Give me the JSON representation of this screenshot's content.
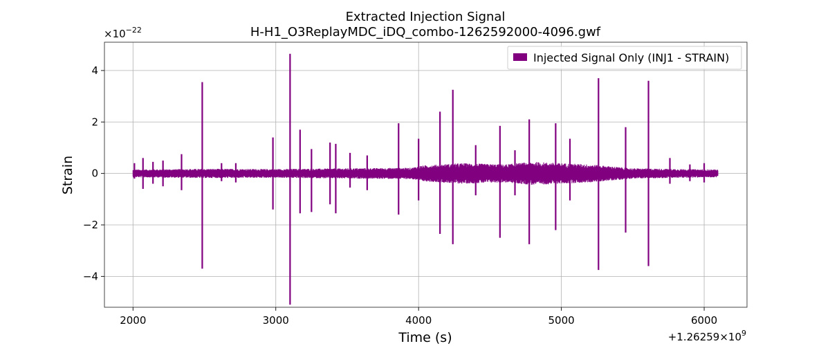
{
  "chart_data": {
    "type": "line",
    "title": "Extracted Injection Signal",
    "subtitle": "H-H1_O3ReplayMDC_iDQ_combo-1262592000-4096.gwf",
    "xlabel": "Time (s)",
    "ylabel": "Strain",
    "x_offset_label": "+1.26259×10",
    "x_offset_exp": "9",
    "y_scale_label": "×10",
    "y_scale_exp": "−22",
    "xlim": [
      1800,
      6300
    ],
    "ylim": [
      -5.2,
      5.1
    ],
    "x_ticks": [
      2000,
      3000,
      4000,
      5000,
      6000
    ],
    "x_tick_labels": [
      "2000",
      "3000",
      "4000",
      "5000",
      "6000"
    ],
    "y_ticks": [
      -4,
      -2,
      0,
      2,
      4
    ],
    "y_tick_labels": [
      "−4",
      "−2",
      "0",
      "2",
      "4"
    ],
    "grid": true,
    "legend_position": "top-right",
    "series": [
      {
        "name": "Injected Signal Only (INJ1 - STRAIN)",
        "color": "#800080",
        "x_range": [
          2000,
          6096
        ],
        "background_envelope": [
          {
            "x": 2000,
            "amp": 0.15
          },
          {
            "x": 2500,
            "amp": 0.18
          },
          {
            "x": 3000,
            "amp": 0.17
          },
          {
            "x": 3500,
            "amp": 0.2
          },
          {
            "x": 3950,
            "amp": 0.22
          },
          {
            "x": 4010,
            "amp": 0.3
          },
          {
            "x": 4300,
            "amp": 0.4
          },
          {
            "x": 4600,
            "amp": 0.35
          },
          {
            "x": 4800,
            "amp": 0.45
          },
          {
            "x": 5200,
            "amp": 0.35
          },
          {
            "x": 5500,
            "amp": 0.2
          },
          {
            "x": 6096,
            "amp": 0.15
          }
        ],
        "glitches": [
          {
            "t": 2010,
            "pos": 0.4,
            "neg": -0.2
          },
          {
            "t": 2070,
            "pos": 0.6,
            "neg": -0.6
          },
          {
            "t": 2140,
            "pos": 0.45,
            "neg": -0.4
          },
          {
            "t": 2210,
            "pos": 0.5,
            "neg": -0.5
          },
          {
            "t": 2340,
            "pos": 0.75,
            "neg": -0.65
          },
          {
            "t": 2485,
            "pos": 3.55,
            "neg": -3.7
          },
          {
            "t": 2620,
            "pos": 0.4,
            "neg": -0.3
          },
          {
            "t": 2720,
            "pos": 0.4,
            "neg": -0.35
          },
          {
            "t": 2980,
            "pos": 1.4,
            "neg": -1.4
          },
          {
            "t": 3100,
            "pos": 4.65,
            "neg": -5.1
          },
          {
            "t": 3170,
            "pos": 1.7,
            "neg": -1.55
          },
          {
            "t": 3250,
            "pos": 0.95,
            "neg": -1.5
          },
          {
            "t": 3380,
            "pos": 1.2,
            "neg": -1.2
          },
          {
            "t": 3420,
            "pos": 1.15,
            "neg": -1.55
          },
          {
            "t": 3520,
            "pos": 0.8,
            "neg": -0.55
          },
          {
            "t": 3640,
            "pos": 0.7,
            "neg": -0.65
          },
          {
            "t": 3860,
            "pos": 1.95,
            "neg": -1.6
          },
          {
            "t": 4000,
            "pos": 1.35,
            "neg": -1.05
          },
          {
            "t": 4150,
            "pos": 2.4,
            "neg": -2.35
          },
          {
            "t": 4240,
            "pos": 3.25,
            "neg": -2.75
          },
          {
            "t": 4400,
            "pos": 1.1,
            "neg": -0.85
          },
          {
            "t": 4570,
            "pos": 1.85,
            "neg": -2.5
          },
          {
            "t": 4675,
            "pos": 0.9,
            "neg": -0.85
          },
          {
            "t": 4775,
            "pos": 2.1,
            "neg": -2.75
          },
          {
            "t": 4960,
            "pos": 1.95,
            "neg": -2.2
          },
          {
            "t": 5060,
            "pos": 1.35,
            "neg": -1.05
          },
          {
            "t": 5260,
            "pos": 3.7,
            "neg": -3.75
          },
          {
            "t": 5450,
            "pos": 1.8,
            "neg": -2.3
          },
          {
            "t": 5610,
            "pos": 3.6,
            "neg": -3.6
          },
          {
            "t": 5760,
            "pos": 0.6,
            "neg": -0.4
          },
          {
            "t": 5900,
            "pos": 0.35,
            "neg": -0.3
          },
          {
            "t": 6000,
            "pos": 0.4,
            "neg": -0.35
          }
        ]
      }
    ]
  }
}
